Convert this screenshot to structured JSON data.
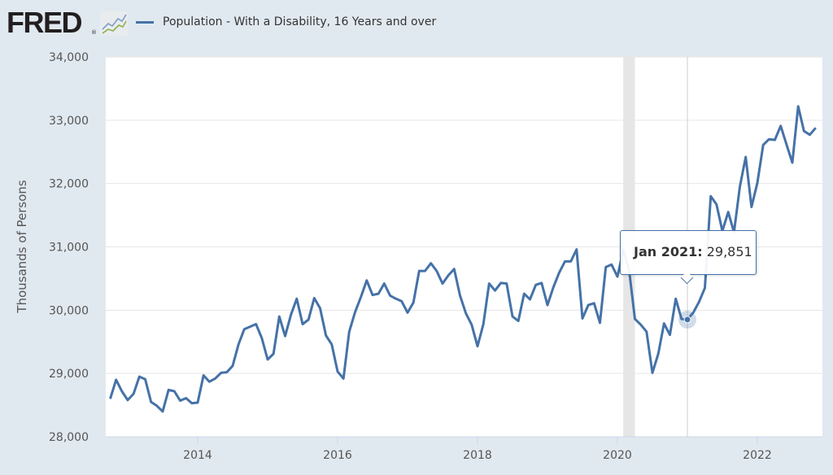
{
  "header": {
    "logo_text": "FRED",
    "logo_reg": "®",
    "logo_icon": "line-chart-icon",
    "legend_label": "Population - With a Disability, 16 Years and over"
  },
  "tooltip": {
    "date": "Jan 2021:",
    "value": "29,851"
  },
  "colors": {
    "series": "#4572a7",
    "background": "#e1e9f0",
    "plot": "#ffffff",
    "recession": "#e6e6e6",
    "grid": "#e6e6e6"
  },
  "chart_data": {
    "type": "line",
    "title": "",
    "xlabel": "",
    "ylabel": "Thousands of Persons",
    "ylim": [
      28000,
      34000
    ],
    "yticks": [
      28000,
      29000,
      30000,
      31000,
      32000,
      33000,
      34000
    ],
    "ytick_labels": [
      "28,000",
      "29,000",
      "30,000",
      "31,000",
      "32,000",
      "33,000",
      "34,000"
    ],
    "xlim": [
      "2012-10",
      "2022-12"
    ],
    "xticks": [
      "2014",
      "2016",
      "2018",
      "2020",
      "2022"
    ],
    "grid": true,
    "legend": "top-left",
    "recession_band": [
      "2020-02",
      "2020-04"
    ],
    "highlight": {
      "x": "2021-01",
      "y": 29851,
      "label": "Jan 2021: 29,851"
    },
    "series": [
      {
        "name": "Population - With a Disability, 16 Years and over",
        "start": "2012-10",
        "frequency": "monthly",
        "values": [
          28600,
          28900,
          28720,
          28580,
          28680,
          28950,
          28910,
          28550,
          28490,
          28400,
          28740,
          28720,
          28570,
          28610,
          28530,
          28540,
          28970,
          28870,
          28920,
          29010,
          29020,
          29120,
          29460,
          29700,
          29740,
          29780,
          29560,
          29220,
          29310,
          29900,
          29590,
          29930,
          30180,
          29780,
          29850,
          30190,
          30030,
          29600,
          29460,
          29030,
          28920,
          29660,
          29970,
          30210,
          30470,
          30240,
          30260,
          30420,
          30230,
          30180,
          30140,
          29960,
          30120,
          30620,
          30620,
          30740,
          30620,
          30420,
          30550,
          30650,
          30230,
          29950,
          29770,
          29430,
          29780,
          30420,
          30310,
          30430,
          30420,
          29900,
          29830,
          30260,
          30170,
          30400,
          30430,
          30080,
          30360,
          30590,
          30770,
          30770,
          30960,
          29870,
          30080,
          30110,
          29800,
          30680,
          30720,
          30530,
          30950,
          30640,
          29860,
          29770,
          29660,
          29010,
          29310,
          29790,
          29610,
          30180,
          29860,
          29851,
          29960,
          30130,
          30350,
          31800,
          31670,
          31250,
          31550,
          31230,
          31950,
          32420,
          31630,
          32010,
          32610,
          32700,
          32690,
          32910,
          32620,
          32330,
          33220,
          32830,
          32770,
          32880
        ]
      }
    ]
  }
}
